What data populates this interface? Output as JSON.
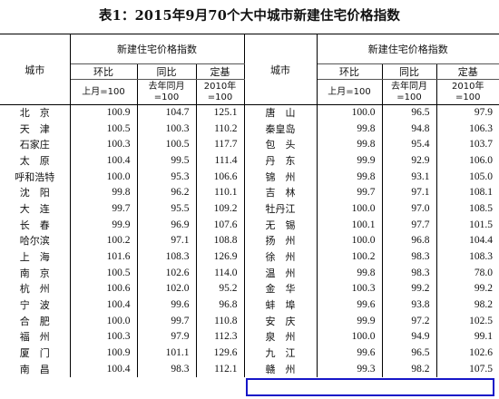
{
  "title": "表1：2015年9月70个大中城市新建住宅价格指数",
  "header": {
    "city_label": "城市",
    "group_label": "新建住宅价格指数",
    "col_mom": "环比",
    "col_yoy": "同比",
    "col_base": "定基",
    "sub_mom": "上月=100",
    "sub_yoy_line1": "去年同月",
    "sub_yoy_line2": "=100",
    "sub_base_line1": "2010年",
    "sub_base_line2": "=100"
  },
  "rows": [
    {
      "l": {
        "city": "北　京",
        "mom": "100.9",
        "yoy": "104.7",
        "base": "125.1"
      },
      "r": {
        "city": "唐　山",
        "mom": "100.0",
        "yoy": "96.5",
        "base": "97.9"
      }
    },
    {
      "l": {
        "city": "天　津",
        "mom": "100.5",
        "yoy": "100.3",
        "base": "110.2"
      },
      "r": {
        "city": "秦皇岛",
        "mom": "99.8",
        "yoy": "94.8",
        "base": "106.3"
      }
    },
    {
      "l": {
        "city": "石家庄",
        "mom": "100.3",
        "yoy": "100.5",
        "base": "117.7"
      },
      "r": {
        "city": "包　头",
        "mom": "99.8",
        "yoy": "95.4",
        "base": "103.7"
      }
    },
    {
      "l": {
        "city": "太　原",
        "mom": "100.4",
        "yoy": "99.5",
        "base": "111.4"
      },
      "r": {
        "city": "丹　东",
        "mom": "99.9",
        "yoy": "92.9",
        "base": "106.0"
      }
    },
    {
      "l": {
        "city": "呼和浩特",
        "mom": "100.0",
        "yoy": "95.3",
        "base": "106.6"
      },
      "r": {
        "city": "锦　州",
        "mom": "99.8",
        "yoy": "93.1",
        "base": "105.0"
      }
    },
    {
      "l": {
        "city": "沈　阳",
        "mom": "99.8",
        "yoy": "96.2",
        "base": "110.1"
      },
      "r": {
        "city": "吉　林",
        "mom": "99.7",
        "yoy": "97.1",
        "base": "108.1"
      }
    },
    {
      "l": {
        "city": "大　连",
        "mom": "99.7",
        "yoy": "95.5",
        "base": "109.2"
      },
      "r": {
        "city": "牡丹江",
        "mom": "100.0",
        "yoy": "97.0",
        "base": "108.5"
      }
    },
    {
      "l": {
        "city": "长　春",
        "mom": "99.9",
        "yoy": "96.9",
        "base": "107.6"
      },
      "r": {
        "city": "无　锡",
        "mom": "100.1",
        "yoy": "97.7",
        "base": "101.5"
      }
    },
    {
      "l": {
        "city": "哈尔滨",
        "mom": "100.2",
        "yoy": "97.1",
        "base": "108.8"
      },
      "r": {
        "city": "扬　州",
        "mom": "100.0",
        "yoy": "96.8",
        "base": "104.4"
      }
    },
    {
      "l": {
        "city": "上　海",
        "mom": "101.6",
        "yoy": "108.3",
        "base": "126.9"
      },
      "r": {
        "city": "徐　州",
        "mom": "100.2",
        "yoy": "98.3",
        "base": "108.3"
      }
    },
    {
      "l": {
        "city": "南　京",
        "mom": "100.5",
        "yoy": "102.6",
        "base": "114.0"
      },
      "r": {
        "city": "温　州",
        "mom": "99.8",
        "yoy": "98.3",
        "base": "78.0"
      }
    },
    {
      "l": {
        "city": "杭　州",
        "mom": "100.6",
        "yoy": "102.0",
        "base": "95.2"
      },
      "r": {
        "city": "金　华",
        "mom": "100.3",
        "yoy": "99.2",
        "base": "99.2"
      }
    },
    {
      "l": {
        "city": "宁　波",
        "mom": "100.4",
        "yoy": "99.6",
        "base": "96.8"
      },
      "r": {
        "city": "蚌　埠",
        "mom": "99.6",
        "yoy": "93.8",
        "base": "98.2"
      }
    },
    {
      "l": {
        "city": "合　肥",
        "mom": "100.0",
        "yoy": "99.7",
        "base": "110.8"
      },
      "r": {
        "city": "安　庆",
        "mom": "99.9",
        "yoy": "97.2",
        "base": "102.5"
      }
    },
    {
      "l": {
        "city": "福　州",
        "mom": "100.3",
        "yoy": "97.9",
        "base": "112.3"
      },
      "r": {
        "city": "泉　州",
        "mom": "100.0",
        "yoy": "94.9",
        "base": "99.1"
      }
    },
    {
      "l": {
        "city": "厦　门",
        "mom": "100.9",
        "yoy": "101.1",
        "base": "129.6"
      },
      "r": {
        "city": "九　江",
        "mom": "99.6",
        "yoy": "96.5",
        "base": "102.6"
      }
    },
    {
      "l": {
        "city": "南　昌",
        "mom": "100.4",
        "yoy": "98.3",
        "base": "112.1"
      },
      "r": {
        "city": "赣　州",
        "mom": "99.3",
        "yoy": "98.2",
        "base": "107.5"
      }
    }
  ],
  "highlight_color": "#1616c8"
}
